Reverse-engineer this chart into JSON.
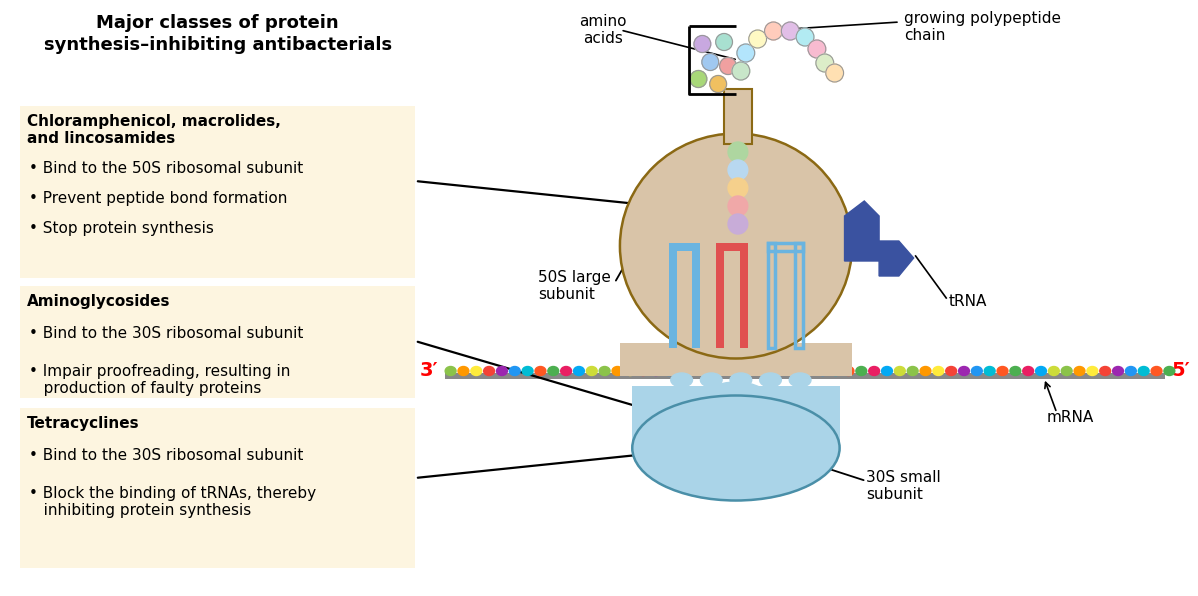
{
  "title": "Major classes of protein\nsynthesis–inhibiting antibacterials",
  "box1_title": "Chloramphenicol, macrolides,\nand lincosamides",
  "box1_bullets": [
    "• Bind to the 50S ribosomal subunit",
    "• Prevent peptide bond formation",
    "• Stop protein synthesis"
  ],
  "box2_title": "Aminoglycosides",
  "box2_bullets": [
    "• Bind to the 30S ribosomal subunit",
    "• Impair proofreading, resulting in\n   production of faulty proteins"
  ],
  "box3_title": "Tetracyclines",
  "box3_bullets": [
    "• Bind to the 30S ribosomal subunit",
    "• Block the binding of tRNAs, thereby\n   inhibiting protein synthesis"
  ],
  "label_amino_acids": "amino\nacids",
  "label_polypeptide": "growing polypeptide\nchain",
  "label_50S": "50S large\nsubunit",
  "label_tRNA": "tRNA",
  "label_mRNA": "mRNA",
  "label_30S": "30S small\nsubunit",
  "label_3prime": "3′",
  "label_5prime": "5′",
  "bg_color": "#ffffff",
  "box_bg": "#fdf5e0",
  "mrna_colors": [
    "#8bc34a",
    "#ff9800",
    "#ffeb3b",
    "#f44336",
    "#9c27b0",
    "#2196f3",
    "#00bcd4",
    "#ff5722",
    "#4caf50",
    "#e91e63",
    "#03a9f4",
    "#cddc39"
  ],
  "poly_colors": [
    "#c8e6c9",
    "#b3e5fc",
    "#fff9c4",
    "#ffccbc",
    "#e1bee7",
    "#b2ebf2",
    "#f8bbd0",
    "#dcedc8",
    "#ffe0b2"
  ],
  "title_fontsize": 13,
  "body_fontsize": 11,
  "label_fontsize": 11
}
